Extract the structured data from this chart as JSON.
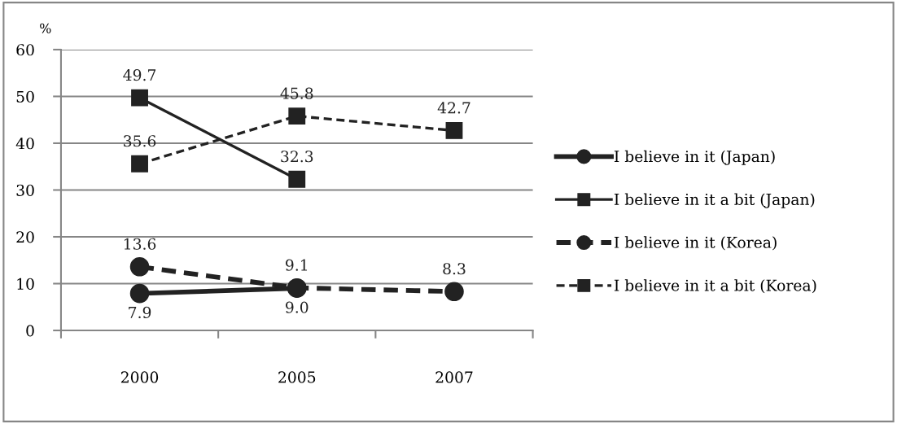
{
  "chart_data": {
    "type": "line",
    "ylabel": "%",
    "categories": [
      "2000",
      "2005",
      "2007"
    ],
    "series": [
      {
        "name": "I believe in it (Japan)",
        "color": "#222222",
        "marker": "circle",
        "line_style": "solid",
        "values": [
          7.9,
          9.0,
          null
        ],
        "value_labels": [
          "7.9",
          "9.0",
          null
        ]
      },
      {
        "name": "I believe in it a bit (Japan)",
        "color": "#222222",
        "marker": "square",
        "line_style": "solid",
        "values": [
          49.7,
          32.3,
          null
        ],
        "value_labels": [
          "49.7",
          "32.3",
          null
        ]
      },
      {
        "name": "I believe in it (Korea)",
        "color": "#222222",
        "marker": "circle",
        "line_style": "dashed",
        "values": [
          13.6,
          9.1,
          8.3
        ],
        "value_labels": [
          "13.6",
          "9.1",
          "8.3"
        ]
      },
      {
        "name": "I believe in it a bit (Korea)",
        "color": "#222222",
        "marker": "square",
        "line_style": "dashed",
        "values": [
          35.6,
          45.8,
          42.7
        ],
        "value_labels": [
          "35.6",
          "45.8",
          "42.7"
        ]
      }
    ],
    "ylim": [
      0,
      60
    ],
    "yticks": [
      0,
      10,
      20,
      30,
      40,
      50,
      60
    ],
    "grid": "y",
    "legend": "right"
  }
}
